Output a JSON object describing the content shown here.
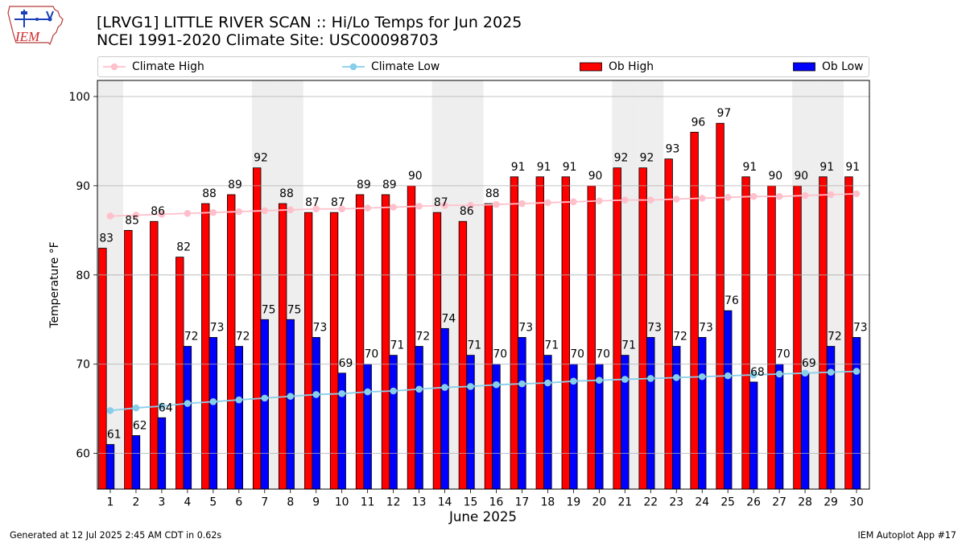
{
  "header": {
    "logo_text": "IEM"
  },
  "chart_data": {
    "type": "bar",
    "title": "[LRVG1] LITTLE RIVER SCAN :: Hi/Lo Temps for Jun 2025",
    "subtitle": "NCEI 1991-2020 Climate Site: USC00098703",
    "xlabel": "June 2025",
    "ylabel": "Temperature °F",
    "x": [
      1,
      2,
      3,
      4,
      5,
      6,
      7,
      8,
      9,
      10,
      11,
      12,
      13,
      14,
      15,
      16,
      17,
      18,
      19,
      20,
      21,
      22,
      23,
      24,
      25,
      26,
      27,
      28,
      29,
      30
    ],
    "xlim": [
      0.5,
      30.5
    ],
    "ylim": [
      56,
      101.8
    ],
    "yticks": [
      60,
      70,
      80,
      90,
      100
    ],
    "grid": "horizontal",
    "legend_position": "top",
    "shaded_days": [
      1,
      7,
      8,
      14,
      15,
      21,
      22,
      28,
      29
    ],
    "shade_color": "#eeeeee",
    "grid_color": "#b0b0b0",
    "series": [
      {
        "name": "Climate High",
        "type": "line",
        "color": "#ffc0cb",
        "values": [
          86.6,
          86.7,
          86.8,
          86.9,
          87.0,
          87.1,
          87.2,
          87.3,
          87.4,
          87.4,
          87.5,
          87.6,
          87.7,
          87.8,
          87.8,
          87.9,
          88.0,
          88.1,
          88.2,
          88.3,
          88.4,
          88.4,
          88.5,
          88.6,
          88.7,
          88.8,
          88.8,
          88.9,
          89.0,
          89.1
        ]
      },
      {
        "name": "Climate Low",
        "type": "line",
        "color": "#87ceeb",
        "values": [
          64.8,
          65.1,
          65.3,
          65.6,
          65.8,
          66.0,
          66.2,
          66.4,
          66.6,
          66.7,
          66.9,
          67.0,
          67.2,
          67.4,
          67.5,
          67.7,
          67.8,
          67.9,
          68.1,
          68.2,
          68.3,
          68.4,
          68.5,
          68.6,
          68.7,
          68.8,
          68.9,
          69.0,
          69.1,
          69.2
        ]
      },
      {
        "name": "Ob High",
        "type": "bar",
        "color": "#ff0000",
        "values": [
          83,
          85,
          86,
          82,
          88,
          89,
          92,
          88,
          87,
          87,
          89,
          89,
          90,
          87,
          86,
          88,
          91,
          91,
          91,
          90,
          92,
          92,
          93,
          96,
          97,
          91,
          90,
          90,
          91,
          91
        ]
      },
      {
        "name": "Ob Low",
        "type": "bar",
        "color": "#0000ff",
        "values": [
          61,
          62,
          64,
          72,
          73,
          72,
          75,
          75,
          73,
          69,
          70,
          71,
          72,
          74,
          71,
          70,
          73,
          71,
          70,
          70,
          71,
          73,
          72,
          73,
          76,
          68,
          70,
          69,
          72,
          73
        ]
      }
    ]
  },
  "footer": {
    "generated": "Generated at 12 Jul 2025 2:45 AM CDT in 0.62s",
    "app": "IEM Autoplot App #17"
  }
}
